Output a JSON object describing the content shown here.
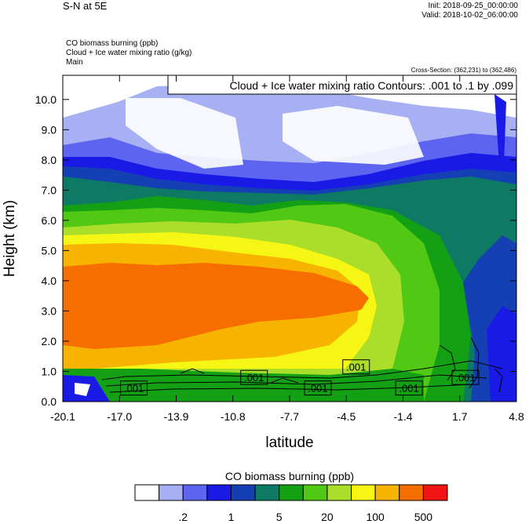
{
  "header": {
    "title": "S-N at 5E",
    "init": "Init: 2018-09-25_00:00:00",
    "valid": "Valid: 2018-10-02_06:00:00",
    "field1": "CO biomass burning   (ppb)",
    "field2": "Cloud + Ice water mixing ratio   (g/kg)",
    "field3": "Main",
    "cross_section": "Cross-Section: (362,231) to (362,486)",
    "contour_info": "Cloud + Ice water mixing ratio Contours: .001 to .1 by .099"
  },
  "chart_data": {
    "type": "heatmap",
    "xlabel": "latitude",
    "ylabel": "Height (km)",
    "xlim": [
      -20.1,
      4.8
    ],
    "ylim": [
      0,
      10.8
    ],
    "x_ticks": [
      "-20.1",
      "-17.0",
      "-13.9",
      "-10.8",
      "-7.7",
      "-4.5",
      "-1.4",
      "1.7",
      "4.8"
    ],
    "y_ticks": [
      "0.0",
      "1.0",
      "2.0",
      "3.0",
      "4.0",
      "5.0",
      "6.0",
      "7.0",
      "8.0",
      "9.0",
      "10.0"
    ],
    "contour_labels": [
      {
        "text": ".001",
        "lat": -16.2,
        "height": 0.45
      },
      {
        "text": ".001",
        "lat": -9.6,
        "height": 0.8
      },
      {
        "text": ".001",
        "lat": -6.1,
        "height": 0.45
      },
      {
        "text": ".001",
        "lat": -4.0,
        "height": 1.15
      },
      {
        "text": ".001",
        "lat": -1.1,
        "height": 0.45
      },
      {
        "text": ".001",
        "lat": 2.0,
        "height": 0.8
      }
    ],
    "colorbar": {
      "title": "CO biomass burning  (ppb)",
      "colors": [
        "#ffffff",
        "#a8b0f4",
        "#5c64f0",
        "#1a1ae6",
        "#1440b4",
        "#0e7a64",
        "#14a014",
        "#50c814",
        "#aade2a",
        "#f6f614",
        "#f6b400",
        "#f66e00",
        "#f01414"
      ],
      "labels": [
        ".2",
        "1",
        "5",
        "20",
        "100",
        "500"
      ]
    }
  }
}
